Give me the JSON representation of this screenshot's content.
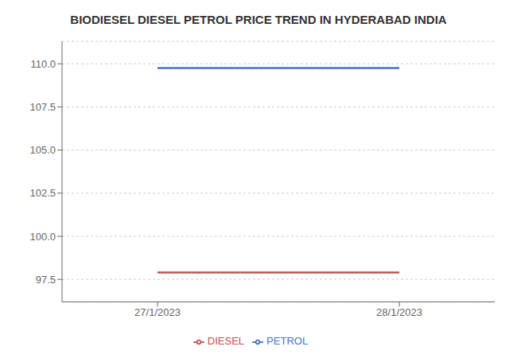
{
  "chart_data": {
    "type": "line",
    "title": "BIODIESEL DIESEL PETROL PRICE TREND IN HYDERABAD INDIA",
    "categories": [
      "27/1/2023",
      "28/1/2023"
    ],
    "series": [
      {
        "name": "PETROL",
        "color": "#4472C4",
        "values": [
          109.75,
          109.75
        ]
      },
      {
        "name": "DIESEL",
        "color": "#C0504D",
        "values": [
          97.9,
          97.9
        ]
      }
    ],
    "ylim": [
      96.2,
      111.3
    ],
    "yticks": [
      97.5,
      {
        "value": 100.0,
        "label": "100.0"
      },
      102.5,
      {
        "value": 105.0,
        "label": "105.0"
      },
      107.5,
      {
        "value": 110.0,
        "label": "110.0"
      }
    ],
    "grid": true,
    "legend": "bottom"
  }
}
